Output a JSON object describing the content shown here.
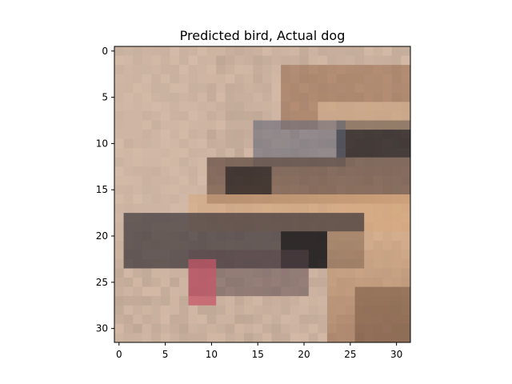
{
  "figure": {
    "title": "Predicted bird, Actual dog",
    "image_description_grid": "32x32 pixelated photo of a dog head (tan, brown, dark gray) on a light beige background",
    "x_axis": {
      "ticks": [
        "0",
        "5",
        "10",
        "15",
        "20",
        "25",
        "30"
      ],
      "tick_values": [
        0,
        5,
        10,
        15,
        20,
        25,
        30
      ],
      "range": [
        -0.5,
        31.5
      ]
    },
    "y_axis": {
      "ticks": [
        "0",
        "5",
        "10",
        "15",
        "20",
        "25",
        "30"
      ],
      "tick_values": [
        0,
        5,
        10,
        15,
        20,
        25,
        30
      ],
      "range": [
        31.5,
        -0.5
      ]
    },
    "colors": {
      "background": "#c7ad9d",
      "axis": "#000000"
    }
  }
}
